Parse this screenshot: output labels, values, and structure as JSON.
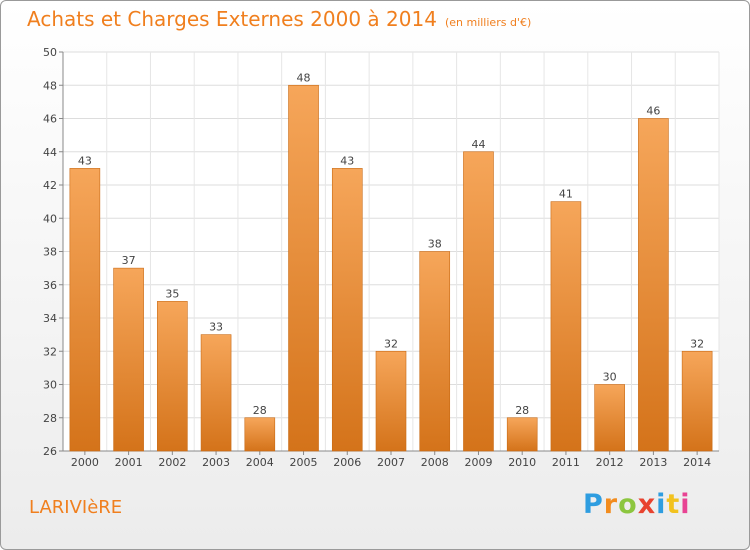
{
  "header": {
    "title": "Achats et Charges Externes 2000 à 2014",
    "subtitle": "(en milliers d'€)"
  },
  "footer": {
    "location": "LARIVIèRE",
    "brand": "Proxiti",
    "brand_colors": [
      "#2e9de0",
      "#f28c1e",
      "#8cc63f",
      "#e8432f",
      "#2e9de0",
      "#f2c21e",
      "#e84393"
    ]
  },
  "colors": {
    "bar_light": "#f6a65a",
    "bar_dark": "#d4731a",
    "accent": "#f07f1e"
  },
  "chart_data": {
    "type": "bar",
    "title": "Achats et Charges Externes 2000 à 2014",
    "categories": [
      "2000",
      "2001",
      "2002",
      "2003",
      "2004",
      "2005",
      "2006",
      "2007",
      "2008",
      "2009",
      "2010",
      "2011",
      "2012",
      "2013",
      "2014"
    ],
    "values": [
      43,
      37,
      35,
      33,
      28,
      48,
      43,
      32,
      38,
      44,
      28,
      41,
      30,
      46,
      32
    ],
    "ylim": [
      26,
      50
    ],
    "yticks": [
      26,
      28,
      30,
      32,
      34,
      36,
      38,
      40,
      42,
      44,
      46,
      48,
      50
    ],
    "grid": true,
    "legend": "none"
  }
}
